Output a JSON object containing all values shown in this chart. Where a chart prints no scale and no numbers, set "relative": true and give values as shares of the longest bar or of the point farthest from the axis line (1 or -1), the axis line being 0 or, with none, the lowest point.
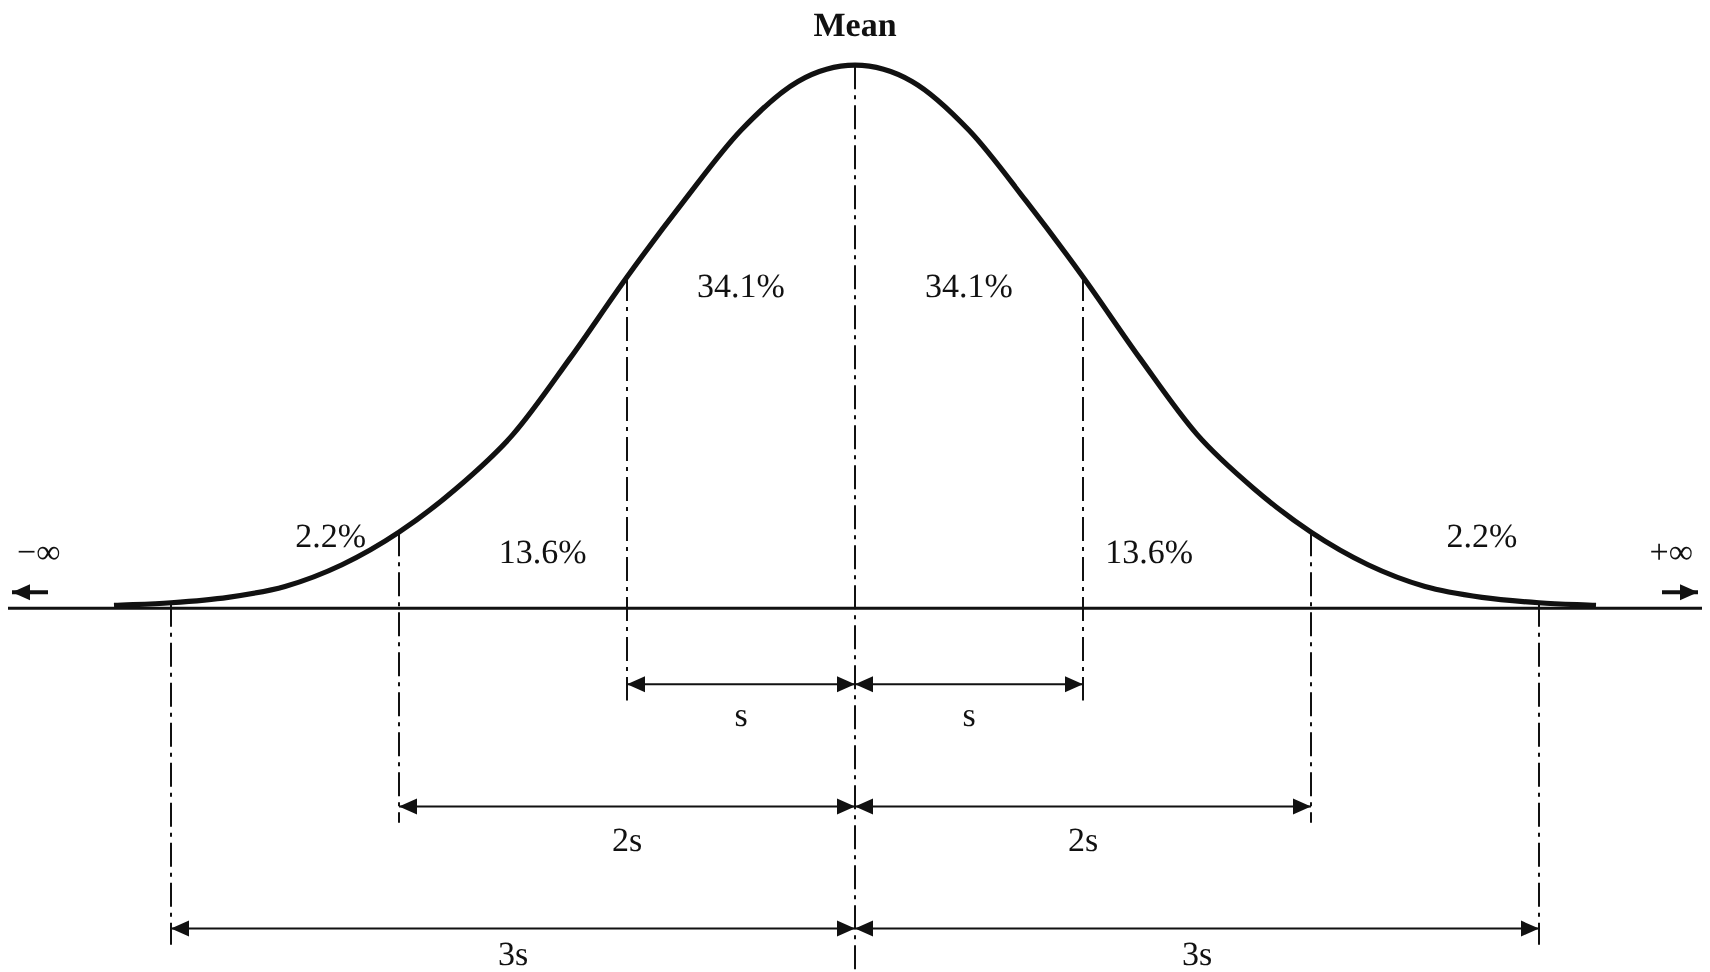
{
  "chart_data": {
    "type": "line",
    "relative": true,
    "marker": "none",
    "grid": "x",
    "line_style": "solid",
    "categories": [
      null,
      null,
      null,
      null,
      null,
      null,
      null,
      null,
      null,
      null,
      null,
      null,
      null,
      null,
      null,
      null,
      null,
      null,
      null,
      null,
      null,
      null,
      null,
      null,
      null,
      null,
      null
    ],
    "series": [
      {
        "color": "#111111",
        "values": [
          0.005,
          0.01,
          0.02,
          0.04,
          0.08,
          0.14,
          0.22,
          0.32,
          0.46,
          0.61,
          0.75,
          0.88,
          0.97,
          1,
          0.97,
          0.88,
          0.75,
          0.61,
          0.46,
          0.32,
          0.22,
          0.14,
          0.08,
          0.04,
          0.02,
          0.01,
          0.005
        ]
      }
    ],
    "annotations": [
      "Mean",
      "34.1%",
      "34.1%",
      "13.6%",
      "13.6%",
      "2.2%",
      "2.2%",
      "−∞",
      "+∞",
      "s",
      "s",
      "2s",
      "2s",
      "3s",
      "3s"
    ]
  }
}
